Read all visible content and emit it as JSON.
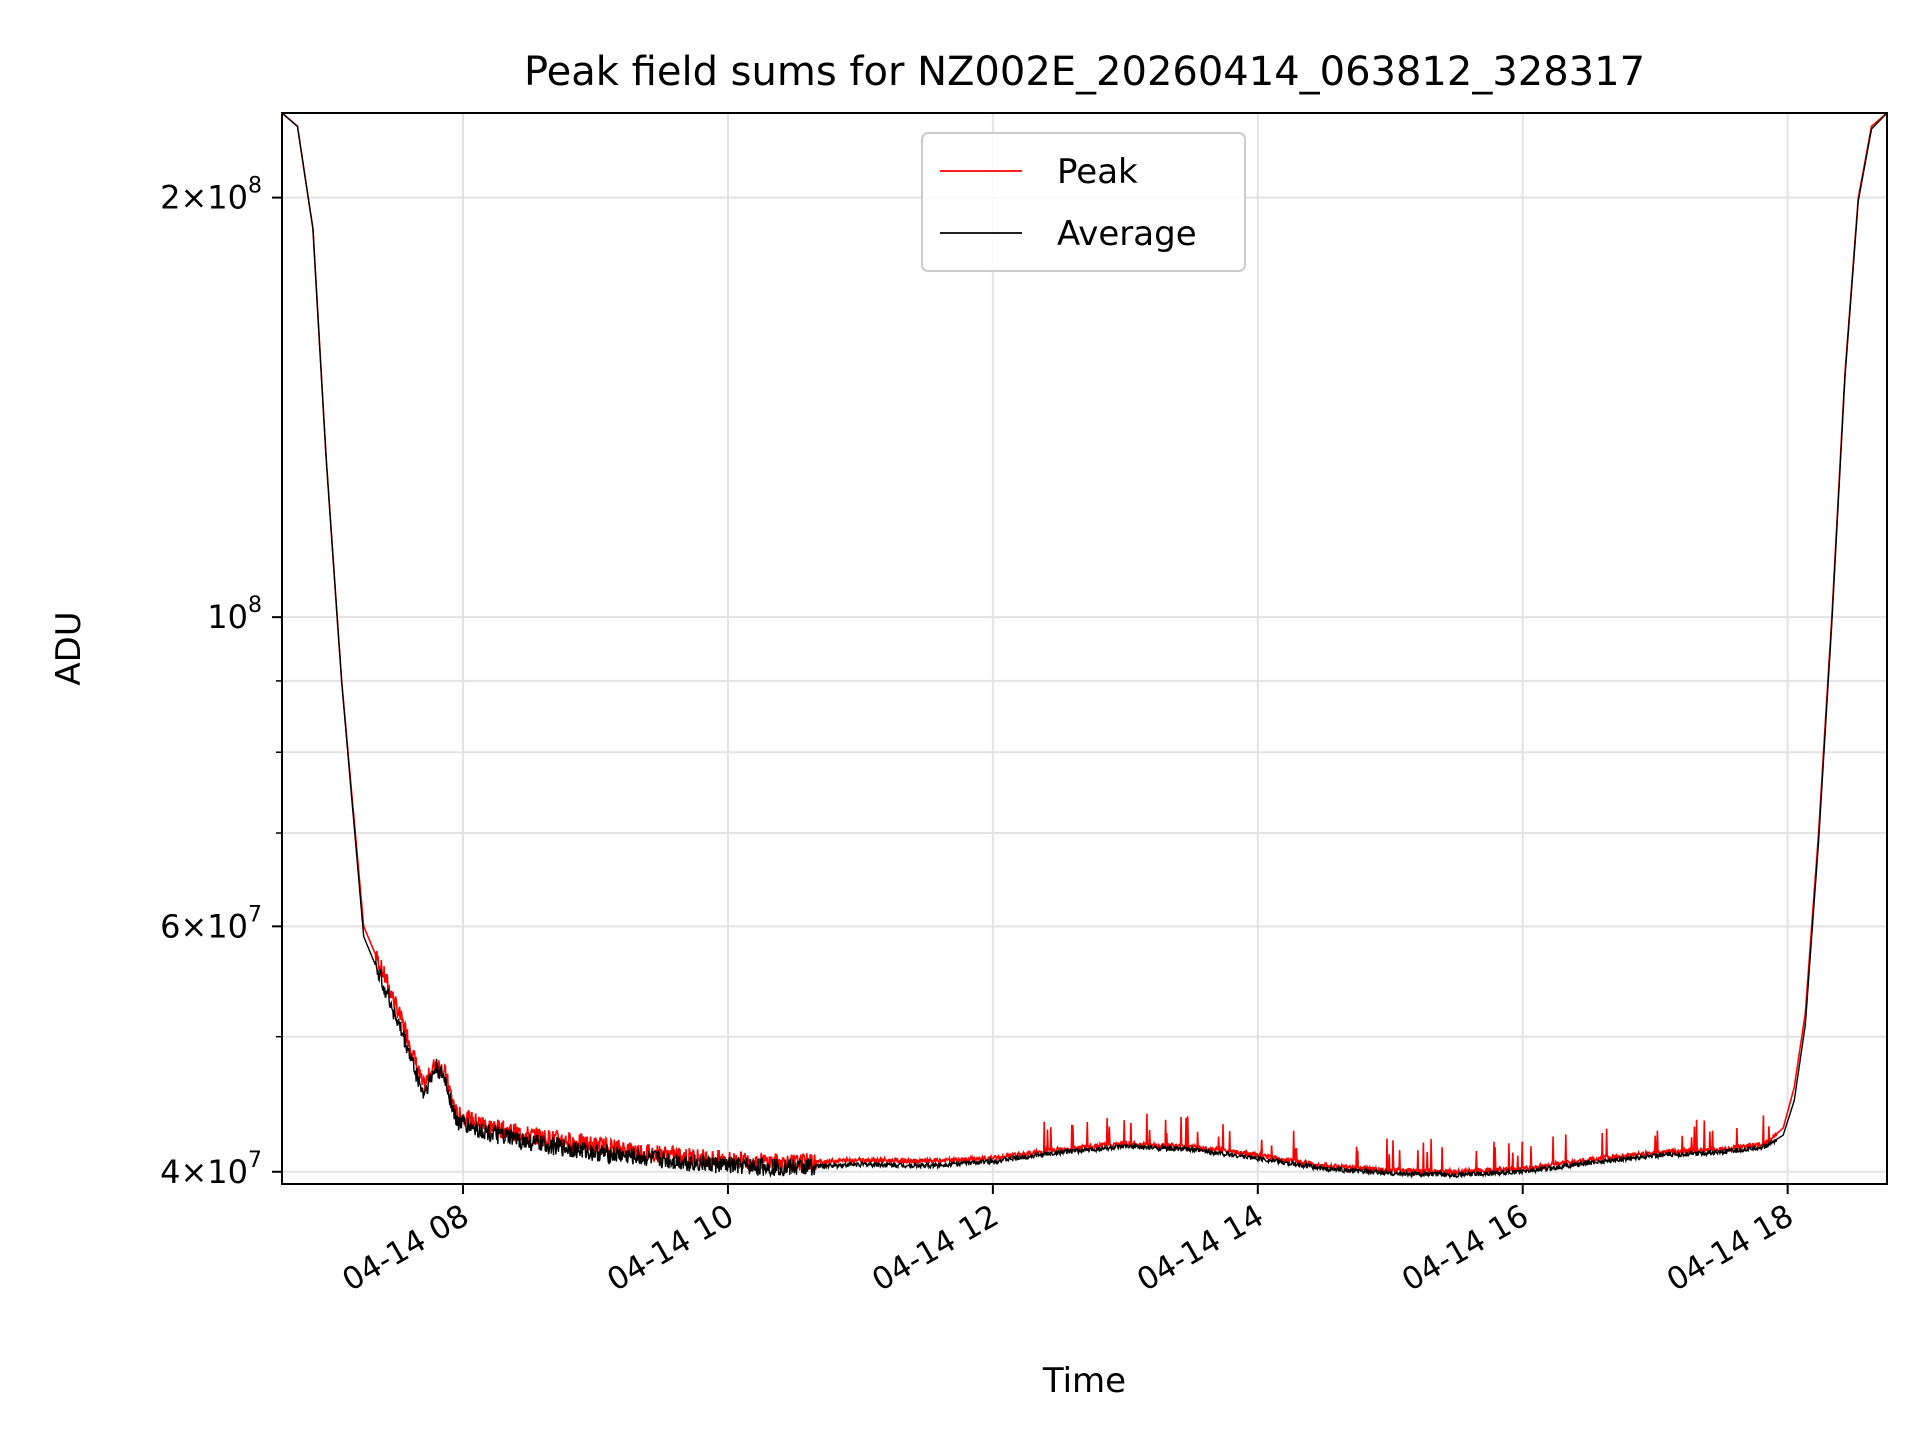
{
  "chart_data": {
    "type": "line",
    "title": "Peak field sums for NZ002E_20260414_063812_328317",
    "xlabel": "Time",
    "ylabel": "ADU",
    "yscale": "log",
    "grid": true,
    "legend_position": "top-center",
    "x_ticks": [
      "04-14 08",
      "04-14 10",
      "04-14 12",
      "04-14 14",
      "04-14 16",
      "04-14 18"
    ],
    "y_ticks": [
      {
        "value": 40000000,
        "mantissa": "4",
        "exponent": "7"
      },
      {
        "value": 60000000,
        "mantissa": "6",
        "exponent": "7"
      },
      {
        "value": 100000000,
        "mantissa": "10",
        "exponent": "8"
      },
      {
        "value": 200000000,
        "mantissa": "2",
        "exponent": "8"
      }
    ],
    "xlim": [
      "2026-04-14 06:38",
      "2026-04-14 18:45"
    ],
    "ylim": [
      39200000,
      230000000
    ],
    "series": [
      {
        "name": "Peak",
        "color": "#ff0000",
        "spiky": true,
        "x": [
          "2026-04-14 06:38",
          "2026-04-14 06:45",
          "2026-04-14 06:52",
          "2026-04-14 06:58",
          "2026-04-14 07:05",
          "2026-04-14 07:15",
          "2026-04-14 07:25",
          "2026-04-14 07:35",
          "2026-04-14 07:42",
          "2026-04-14 07:48",
          "2026-04-14 07:52",
          "2026-04-14 07:57",
          "2026-04-14 08:05",
          "2026-04-14 08:15",
          "2026-04-14 08:30",
          "2026-04-14 09:00",
          "2026-04-14 09:30",
          "2026-04-14 10:00",
          "2026-04-14 10:30",
          "2026-04-14 11:00",
          "2026-04-14 11:30",
          "2026-04-14 12:00",
          "2026-04-14 12:30",
          "2026-04-14 13:00",
          "2026-04-14 13:30",
          "2026-04-14 14:00",
          "2026-04-14 14:30",
          "2026-04-14 15:00",
          "2026-04-14 15:30",
          "2026-04-14 16:00",
          "2026-04-14 16:30",
          "2026-04-14 17:00",
          "2026-04-14 17:30",
          "2026-04-14 17:50",
          "2026-04-14 17:58",
          "2026-04-14 18:03",
          "2026-04-14 18:08",
          "2026-04-14 18:14",
          "2026-04-14 18:20",
          "2026-04-14 18:26",
          "2026-04-14 18:32",
          "2026-04-14 18:38",
          "2026-04-14 18:45"
        ],
        "y": [
          230000000,
          225000000,
          190000000,
          130000000,
          90000000,
          60000000,
          55000000,
          50000000,
          46000000,
          48000000,
          47000000,
          44000000,
          43500000,
          43000000,
          42500000,
          41800000,
          41200000,
          40800000,
          40600000,
          40800000,
          40700000,
          40900000,
          41500000,
          41900000,
          41700000,
          41100000,
          40400000,
          40100000,
          40000000,
          40200000,
          40800000,
          41300000,
          41500000,
          41900000,
          43000000,
          46000000,
          52000000,
          70000000,
          100000000,
          150000000,
          200000000,
          225000000,
          230000000
        ]
      },
      {
        "name": "Average",
        "color": "#000000",
        "spiky": false,
        "x": [
          "2026-04-14 06:38",
          "2026-04-14 06:45",
          "2026-04-14 06:52",
          "2026-04-14 06:58",
          "2026-04-14 07:05",
          "2026-04-14 07:15",
          "2026-04-14 07:25",
          "2026-04-14 07:35",
          "2026-04-14 07:42",
          "2026-04-14 07:48",
          "2026-04-14 07:52",
          "2026-04-14 07:57",
          "2026-04-14 08:05",
          "2026-04-14 08:15",
          "2026-04-14 08:30",
          "2026-04-14 09:00",
          "2026-04-14 09:30",
          "2026-04-14 10:00",
          "2026-04-14 10:30",
          "2026-04-14 11:00",
          "2026-04-14 11:30",
          "2026-04-14 12:00",
          "2026-04-14 12:30",
          "2026-04-14 13:00",
          "2026-04-14 13:30",
          "2026-04-14 14:00",
          "2026-04-14 14:30",
          "2026-04-14 15:00",
          "2026-04-14 15:30",
          "2026-04-14 16:00",
          "2026-04-14 16:30",
          "2026-04-14 17:00",
          "2026-04-14 17:30",
          "2026-04-14 17:50",
          "2026-04-14 17:58",
          "2026-04-14 18:03",
          "2026-04-14 18:08",
          "2026-04-14 18:14",
          "2026-04-14 18:20",
          "2026-04-14 18:26",
          "2026-04-14 18:32",
          "2026-04-14 18:38",
          "2026-04-14 18:45"
        ],
        "y": [
          230000000,
          225000000,
          190000000,
          130000000,
          90000000,
          59000000,
          54000000,
          49000000,
          45500000,
          47500000,
          46500000,
          43500000,
          43000000,
          42500000,
          42000000,
          41300000,
          40800000,
          40400000,
          40300000,
          40500000,
          40400000,
          40700000,
          41300000,
          41700000,
          41500000,
          40900000,
          40200000,
          39900000,
          39800000,
          40000000,
          40600000,
          41100000,
          41300000,
          41700000,
          42500000,
          45000000,
          51000000,
          69000000,
          99000000,
          149000000,
          199000000,
          224000000,
          230000000
        ]
      }
    ]
  }
}
